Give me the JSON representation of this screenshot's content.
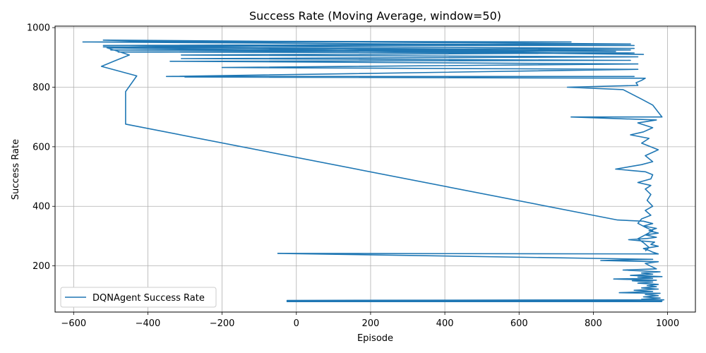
{
  "chart_data": {
    "type": "line",
    "title": "Success Rate (Moving Average, window=50)",
    "xlabel": "Episode",
    "ylabel": "Success Rate",
    "xlim": [
      -650,
      1075
    ],
    "ylim": [
      45,
      1005
    ],
    "xticks": [
      -600,
      -400,
      -200,
      0,
      200,
      400,
      600,
      800,
      1000
    ],
    "xtick_labels": [
      "−600",
      "−400",
      "−200",
      "0",
      "200",
      "400",
      "600",
      "800",
      "1000"
    ],
    "yticks": [
      200,
      400,
      600,
      800,
      1000
    ],
    "ytick_labels": [
      "200",
      "400",
      "600",
      "800",
      "1000"
    ],
    "grid": true,
    "legend_position": "lower-left",
    "colors": {
      "line": "#1f77b4",
      "grid": "#b0b0b0",
      "axes": "#000000"
    },
    "series": [
      {
        "name": "DQNAgent Success Rate",
        "points": [
          [
            985,
            80
          ],
          [
            -25,
            80
          ],
          [
            985,
            82
          ],
          [
            -25,
            82
          ],
          [
            985,
            84
          ],
          [
            -25,
            84
          ],
          [
            990,
            86
          ],
          [
            930,
            88
          ],
          [
            980,
            92
          ],
          [
            935,
            96
          ],
          [
            975,
            100
          ],
          [
            940,
            104
          ],
          [
            980,
            108
          ],
          [
            870,
            110
          ],
          [
            960,
            114
          ],
          [
            910,
            118
          ],
          [
            975,
            122
          ],
          [
            930,
            126
          ],
          [
            970,
            130
          ],
          [
            945,
            134
          ],
          [
            975,
            138
          ],
          [
            920,
            142
          ],
          [
            960,
            146
          ],
          [
            905,
            150
          ],
          [
            970,
            152
          ],
          [
            855,
            156
          ],
          [
            960,
            158
          ],
          [
            920,
            162
          ],
          [
            985,
            164
          ],
          [
            900,
            168
          ],
          [
            960,
            172
          ],
          [
            930,
            176
          ],
          [
            980,
            180
          ],
          [
            880,
            186
          ],
          [
            970,
            190
          ],
          [
            960,
            196
          ],
          [
            950,
            202
          ],
          [
            940,
            208
          ],
          [
            975,
            214
          ],
          [
            820,
            218
          ],
          [
            960,
            222
          ],
          [
            -50,
            242
          ],
          [
            975,
            240
          ],
          [
            960,
            246
          ],
          [
            950,
            252
          ],
          [
            935,
            258
          ],
          [
            975,
            266
          ],
          [
            955,
            272
          ],
          [
            965,
            280
          ],
          [
            895,
            288
          ],
          [
            945,
            292
          ],
          [
            970,
            296
          ],
          [
            940,
            304
          ],
          [
            975,
            310
          ],
          [
            950,
            318
          ],
          [
            970,
            326
          ],
          [
            935,
            334
          ],
          [
            960,
            342
          ],
          [
            935,
            350
          ],
          [
            865,
            354
          ],
          [
            -460,
            676
          ],
          [
            -460,
            785
          ],
          [
            -430,
            838
          ],
          [
            -525,
            870
          ],
          [
            -490,
            888
          ],
          [
            -450,
            908
          ],
          [
            -510,
            932
          ],
          [
            935,
            910
          ],
          [
            -480,
            940
          ],
          [
            910,
            940
          ],
          [
            -575,
            952
          ],
          [
            740,
            952
          ],
          [
            -430,
            955
          ],
          [
            -520,
            958
          ],
          [
            900,
            945
          ],
          [
            -520,
            940
          ],
          [
            910,
            930
          ],
          [
            -500,
            925
          ],
          [
            860,
            920
          ],
          [
            -520,
            935
          ],
          [
            900,
            925
          ],
          [
            -480,
            918
          ],
          [
            910,
            915
          ],
          [
            -310,
            908
          ],
          [
            920,
            902
          ],
          [
            -310,
            896
          ],
          [
            900,
            890
          ],
          [
            -340,
            887
          ],
          [
            920,
            878
          ],
          [
            -200,
            866
          ],
          [
            920,
            860
          ],
          [
            -350,
            836
          ],
          [
            910,
            836
          ],
          [
            -300,
            834
          ],
          [
            940,
            830
          ],
          [
            930,
            823
          ],
          [
            915,
            815
          ],
          [
            920,
            806
          ],
          [
            730,
            800
          ],
          [
            880,
            792
          ],
          [
            930,
            760
          ],
          [
            960,
            740
          ],
          [
            985,
            700
          ],
          [
            740,
            700
          ],
          [
            970,
            690
          ],
          [
            920,
            680
          ],
          [
            960,
            664
          ],
          [
            935,
            650
          ],
          [
            900,
            640
          ],
          [
            950,
            628
          ],
          [
            930,
            612
          ],
          [
            975,
            590
          ],
          [
            940,
            570
          ],
          [
            960,
            550
          ],
          [
            930,
            540
          ],
          [
            860,
            525
          ],
          [
            940,
            516
          ],
          [
            960,
            506
          ],
          [
            955,
            492
          ],
          [
            920,
            480
          ],
          [
            955,
            470
          ],
          [
            940,
            458
          ],
          [
            955,
            440
          ],
          [
            945,
            420
          ],
          [
            960,
            400
          ],
          [
            940,
            386
          ],
          [
            955,
            370
          ],
          [
            930,
            358
          ],
          [
            920,
            343
          ],
          [
            940,
            330
          ],
          [
            960,
            318
          ],
          [
            940,
            304
          ],
          [
            920,
            291
          ],
          [
            935,
            278
          ],
          [
            950,
            262
          ],
          [
            940,
            250
          ]
        ]
      }
    ]
  }
}
